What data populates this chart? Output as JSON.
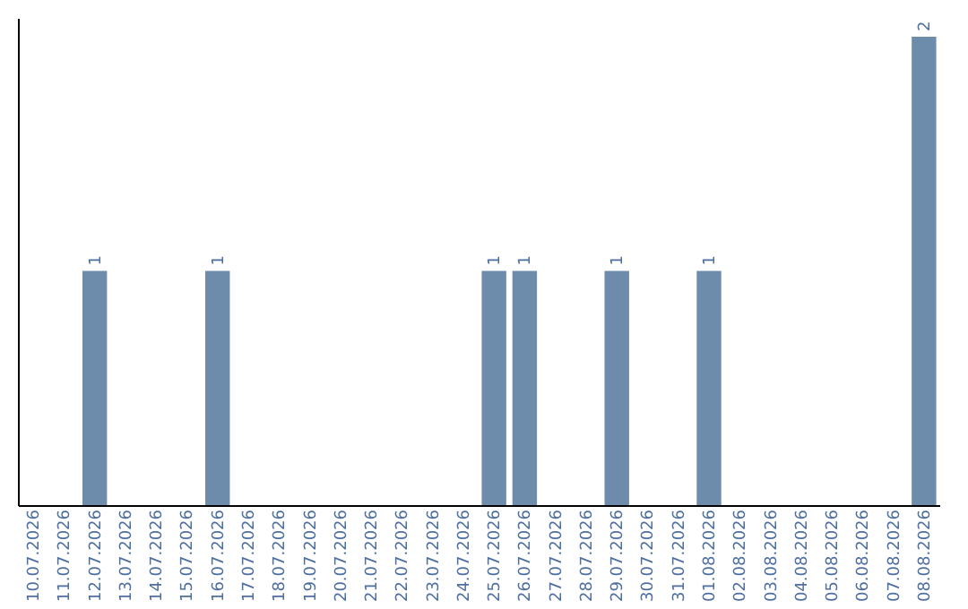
{
  "chart_data": {
    "type": "bar",
    "categories": [
      "10.07.2026",
      "11.07.2026",
      "12.07.2026",
      "13.07.2026",
      "14.07.2026",
      "15.07.2026",
      "16.07.2026",
      "17.07.2026",
      "18.07.2026",
      "19.07.2026",
      "20.07.2026",
      "21.07.2026",
      "22.07.2026",
      "23.07.2026",
      "24.07.2026",
      "25.07.2026",
      "26.07.2026",
      "27.07.2026",
      "28.07.2026",
      "29.07.2026",
      "30.07.2026",
      "31.07.2026",
      "01.08.2026",
      "02.08.2026",
      "03.08.2026",
      "04.08.2026",
      "05.08.2026",
      "06.08.2026",
      "07.08.2026",
      "08.08.2026"
    ],
    "values": [
      0,
      0,
      1,
      0,
      0,
      0,
      1,
      0,
      0,
      0,
      0,
      0,
      0,
      0,
      0,
      1,
      1,
      0,
      0,
      1,
      0,
      0,
      1,
      0,
      0,
      0,
      0,
      0,
      0,
      2
    ],
    "value_labels": [
      null,
      null,
      "1",
      null,
      null,
      null,
      "1",
      null,
      null,
      null,
      null,
      null,
      null,
      null,
      null,
      "1",
      "1",
      null,
      null,
      "1",
      null,
      null,
      "1",
      null,
      null,
      null,
      null,
      null,
      null,
      "2"
    ],
    "color": "#6d8cab",
    "ylim": [
      0,
      2.08
    ],
    "tick_labels": "x",
    "grid": false
  }
}
